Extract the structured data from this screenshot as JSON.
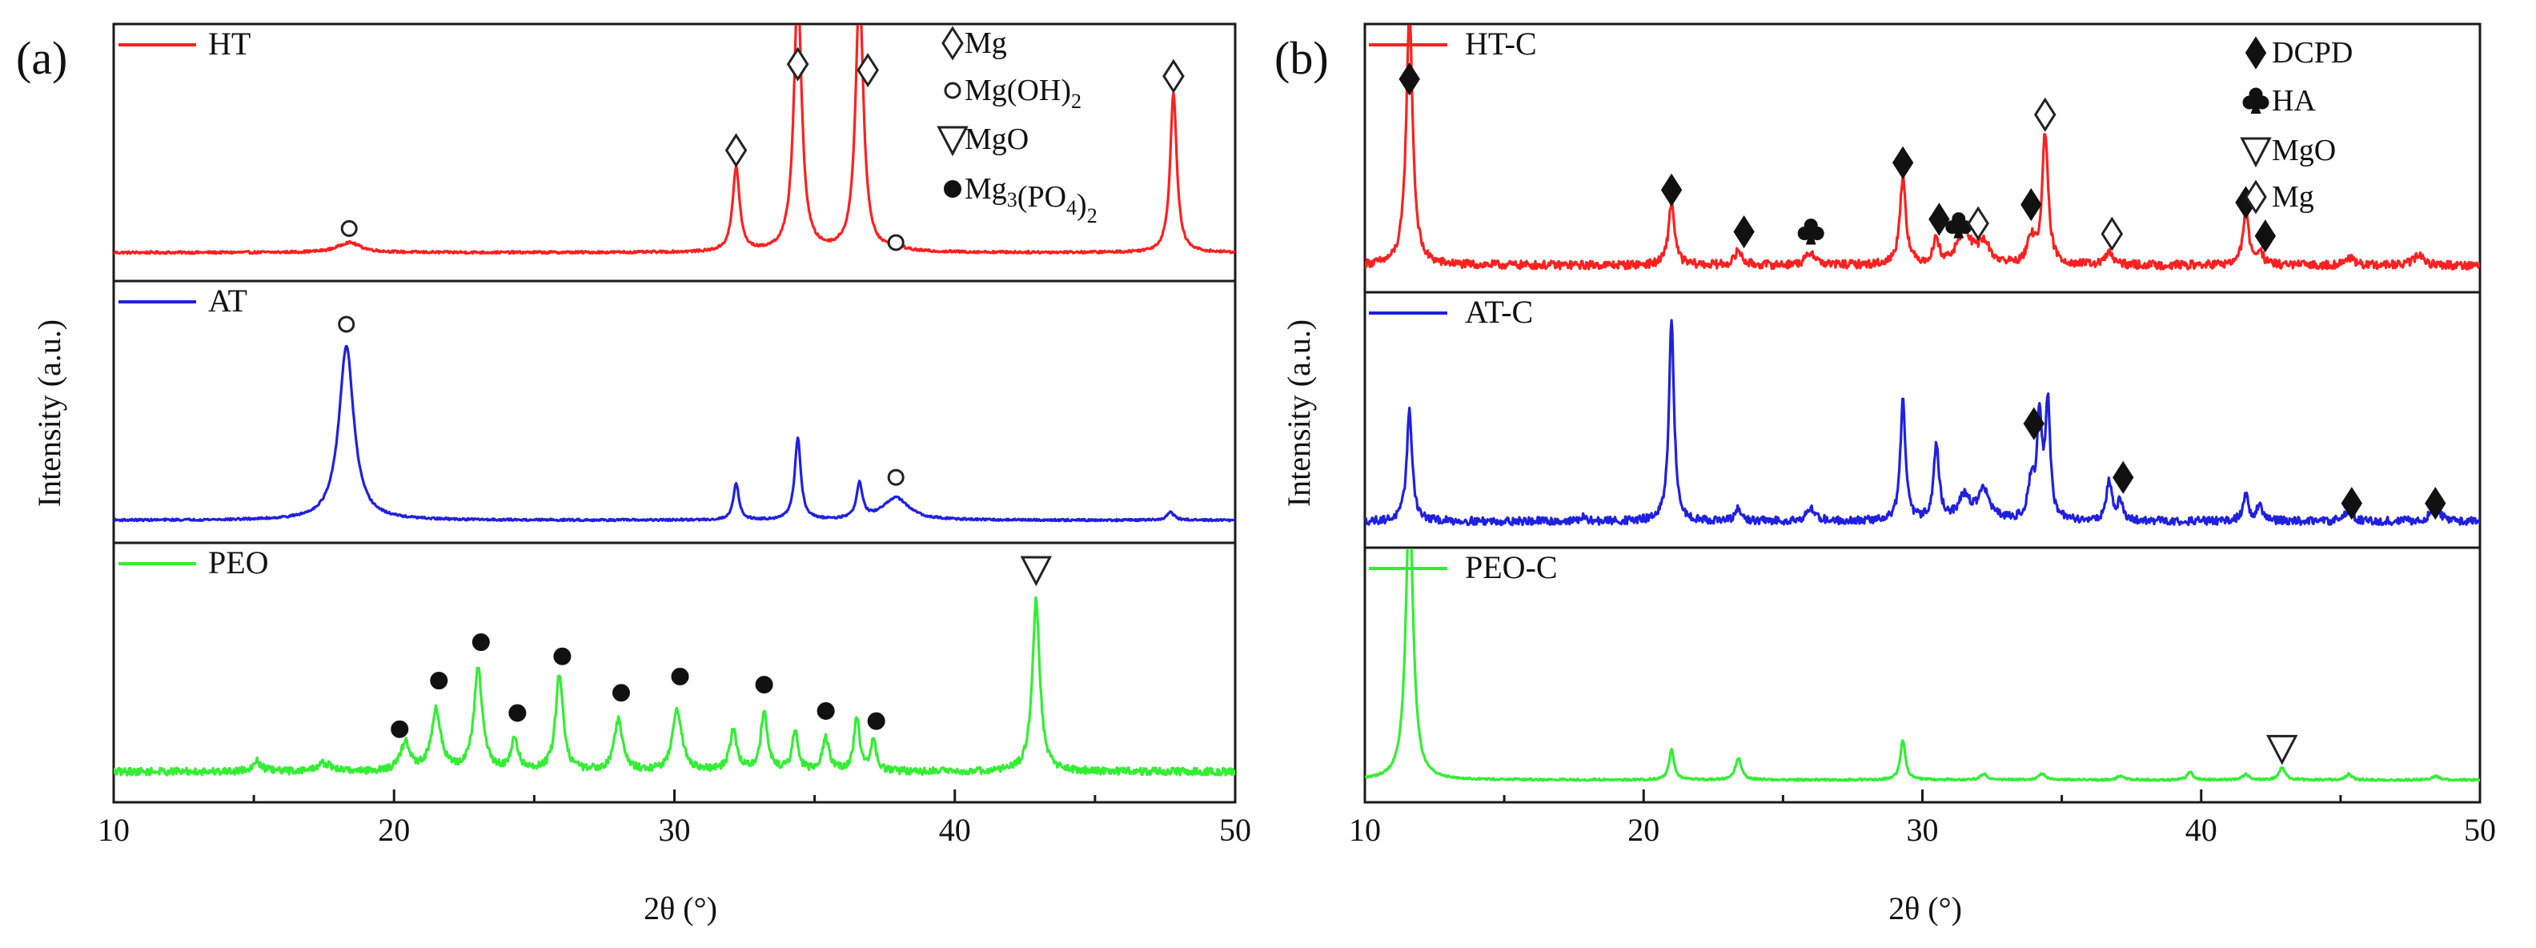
{
  "chart_data": [
    {
      "type": "line",
      "panel": "(a)",
      "xlabel": "2θ (°)",
      "ylabel": "Intensity (a.u.)",
      "xlim": [
        10,
        50
      ],
      "xticks": [
        10,
        20,
        30,
        40,
        50
      ],
      "legend": [
        {
          "symbol": "open-diamond",
          "label": "Mg"
        },
        {
          "symbol": "open-circle",
          "label": "Mg(OH)",
          "sub": "2"
        },
        {
          "symbol": "open-triangle-down",
          "label": "MgO"
        },
        {
          "symbol": "filled-circle",
          "label": "Mg",
          "sub1": "3",
          "mid": "(PO",
          "sub2": "4",
          "end": ")",
          "sub3": "2"
        }
      ],
      "series": [
        {
          "name": "HT",
          "color": "#ff2020",
          "baseline": 0.07,
          "noise": 0.006,
          "peaks": [
            [
              18.4,
              0.05,
              0.5
            ],
            [
              32.2,
              0.42,
              0.15
            ],
            [
              34.4,
              1.3,
              0.17
            ],
            [
              36.6,
              1.3,
              0.17
            ],
            [
              37.9,
              0.02,
              0.3
            ],
            [
              47.8,
              0.8,
              0.14
            ]
          ],
          "markers": [
            [
              18.4,
              "open-circle",
              0.19
            ],
            [
              32.2,
              "open-diamond",
              0.58
            ],
            [
              34.4,
              "open-diamond",
              1.01
            ],
            [
              36.9,
              "open-diamond",
              0.98
            ],
            [
              37.9,
              "open-circle",
              0.12
            ],
            [
              47.8,
              "open-diamond",
              0.95
            ]
          ]
        },
        {
          "name": "AT",
          "color": "#2020e0",
          "baseline": 0.04,
          "noise": 0.005,
          "peaks": [
            [
              18.3,
              0.85,
              0.32
            ],
            [
              32.2,
              0.18,
              0.12
            ],
            [
              34.4,
              0.4,
              0.13
            ],
            [
              36.6,
              0.17,
              0.13
            ],
            [
              37.9,
              0.11,
              0.55
            ],
            [
              47.7,
              0.04,
              0.15
            ]
          ],
          "markers": [
            [
              18.3,
              "open-circle",
              1.0
            ],
            [
              37.9,
              "open-circle",
              0.25
            ]
          ]
        },
        {
          "name": "PEO",
          "color": "#33ee33",
          "baseline": 0.08,
          "noise": 0.018,
          "peaks": [
            [
              15.1,
              0.05,
              0.2
            ],
            [
              17.5,
              0.04,
              0.3
            ],
            [
              20.4,
              0.14,
              0.2
            ],
            [
              21.5,
              0.3,
              0.2
            ],
            [
              23.0,
              0.5,
              0.18
            ],
            [
              24.3,
              0.15,
              0.15
            ],
            [
              25.9,
              0.48,
              0.16
            ],
            [
              28.0,
              0.25,
              0.18
            ],
            [
              30.1,
              0.3,
              0.2
            ],
            [
              32.1,
              0.2,
              0.15
            ],
            [
              33.2,
              0.28,
              0.15
            ],
            [
              34.3,
              0.2,
              0.12
            ],
            [
              35.4,
              0.16,
              0.15
            ],
            [
              36.5,
              0.26,
              0.12
            ],
            [
              37.1,
              0.15,
              0.12
            ],
            [
              42.9,
              0.85,
              0.16
            ]
          ],
          "markers": [
            [
              20.2,
              "filled-circle",
              0.29
            ],
            [
              21.6,
              "filled-circle",
              0.53
            ],
            [
              23.1,
              "filled-circle",
              0.72
            ],
            [
              24.4,
              "filled-circle",
              0.37
            ],
            [
              26.0,
              "filled-circle",
              0.65
            ],
            [
              28.1,
              "filled-circle",
              0.47
            ],
            [
              30.2,
              "filled-circle",
              0.55
            ],
            [
              33.2,
              "filled-circle",
              0.51
            ],
            [
              35.4,
              "filled-circle",
              0.38
            ],
            [
              37.2,
              "filled-circle",
              0.33
            ],
            [
              42.9,
              "open-triangle-down",
              1.08
            ]
          ]
        }
      ]
    },
    {
      "type": "line",
      "panel": "(b)",
      "xlabel": "2θ (°)",
      "ylabel": "Intensity (a.u.)",
      "xlim": [
        10,
        50
      ],
      "xticks": [
        10,
        20,
        30,
        40,
        50
      ],
      "legend": [
        {
          "symbol": "filled-diamond",
          "label": "DCPD"
        },
        {
          "symbol": "club",
          "label": "HA"
        },
        {
          "symbol": "open-triangle-down",
          "label": "MgO"
        },
        {
          "symbol": "open-diamond",
          "label": "Mg"
        }
      ],
      "series": [
        {
          "name": "HT-C",
          "color": "#ff2020",
          "baseline": 0.06,
          "noise": 0.02,
          "peaks": [
            [
              11.6,
              1.2,
              0.14
            ],
            [
              21.0,
              0.3,
              0.13
            ],
            [
              23.4,
              0.07,
              0.15
            ],
            [
              26.0,
              0.06,
              0.2
            ],
            [
              29.3,
              0.42,
              0.13
            ],
            [
              30.5,
              0.12,
              0.12
            ],
            [
              31.5,
              0.16,
              0.3
            ],
            [
              32.2,
              0.1,
              0.25
            ],
            [
              33.9,
              0.12,
              0.15
            ],
            [
              34.4,
              0.62,
              0.13
            ],
            [
              36.7,
              0.06,
              0.15
            ],
            [
              41.6,
              0.27,
              0.12
            ],
            [
              42.1,
              0.07,
              0.12
            ],
            [
              45.3,
              0.04,
              0.15
            ],
            [
              47.8,
              0.05,
              0.2
            ]
          ],
          "markers": [
            [
              11.6,
              "filled-diamond",
              0.95
            ],
            [
              21.0,
              "filled-diamond",
              0.42
            ],
            [
              23.6,
              "filled-diamond",
              0.22
            ],
            [
              26.0,
              "club",
              0.22
            ],
            [
              29.3,
              "filled-diamond",
              0.55
            ],
            [
              30.6,
              "filled-diamond",
              0.28
            ],
            [
              31.3,
              "club",
              0.25
            ],
            [
              32.0,
              "open-diamond",
              0.26
            ],
            [
              33.9,
              "filled-diamond",
              0.35
            ],
            [
              34.4,
              "open-diamond",
              0.78
            ],
            [
              36.8,
              "open-diamond",
              0.21
            ],
            [
              41.6,
              "filled-diamond",
              0.36
            ],
            [
              42.3,
              "filled-diamond",
              0.2
            ]
          ]
        },
        {
          "name": "AT-C",
          "color": "#2020e0",
          "baseline": 0.06,
          "noise": 0.02,
          "peaks": [
            [
              11.6,
              0.55,
              0.12
            ],
            [
              17.8,
              0.02,
              0.1
            ],
            [
              21.0,
              1.0,
              0.11
            ],
            [
              23.4,
              0.06,
              0.12
            ],
            [
              26.0,
              0.06,
              0.2
            ],
            [
              29.3,
              0.6,
              0.11
            ],
            [
              30.5,
              0.37,
              0.12
            ],
            [
              31.5,
              0.12,
              0.25
            ],
            [
              32.2,
              0.15,
              0.25
            ],
            [
              33.9,
              0.18,
              0.13
            ],
            [
              34.2,
              0.5,
              0.11
            ],
            [
              34.5,
              0.58,
              0.1
            ],
            [
              36.7,
              0.2,
              0.12
            ],
            [
              37.1,
              0.1,
              0.1
            ],
            [
              41.6,
              0.13,
              0.12
            ],
            [
              42.1,
              0.08,
              0.12
            ],
            [
              45.3,
              0.06,
              0.15
            ],
            [
              48.4,
              0.07,
              0.2
            ]
          ],
          "markers": [
            [
              34.0,
              "filled-diamond",
              0.55
            ],
            [
              37.2,
              "filled-diamond",
              0.28
            ],
            [
              45.4,
              "filled-diamond",
              0.15
            ],
            [
              48.4,
              "filled-diamond",
              0.15
            ]
          ]
        },
        {
          "name": "PEO-C",
          "color": "#33ee33",
          "baseline": 0.04,
          "noise": 0.005,
          "peaks": [
            [
              11.6,
              1.4,
              0.16
            ],
            [
              21.0,
              0.15,
              0.11
            ],
            [
              23.4,
              0.11,
              0.13
            ],
            [
              29.3,
              0.2,
              0.11
            ],
            [
              32.2,
              0.03,
              0.15
            ],
            [
              34.3,
              0.03,
              0.15
            ],
            [
              37.1,
              0.02,
              0.15
            ],
            [
              39.6,
              0.04,
              0.12
            ],
            [
              41.6,
              0.03,
              0.12
            ],
            [
              42.9,
              0.06,
              0.13
            ],
            [
              45.3,
              0.03,
              0.12
            ],
            [
              48.4,
              0.02,
              0.15
            ]
          ],
          "markers": [
            [
              42.9,
              "open-triangle-down",
              0.2
            ]
          ]
        }
      ]
    }
  ]
}
